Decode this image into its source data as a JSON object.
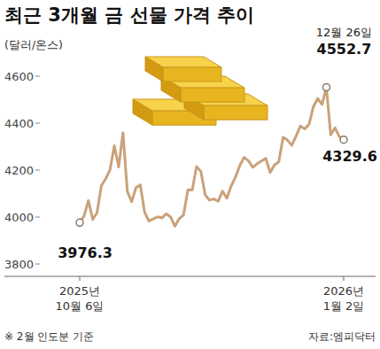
{
  "chart_data": {
    "type": "line",
    "title": "최근 3개월 금 선물 가격 추이",
    "y_label": "(달러/온스)",
    "categories": [
      "2025년 10월 6일",
      null,
      null,
      null,
      null,
      null,
      null,
      null,
      null,
      null,
      null,
      null,
      null,
      null,
      null,
      null,
      null,
      null,
      null,
      null,
      null,
      null,
      null,
      null,
      null,
      null,
      null,
      null,
      null,
      null,
      null,
      null,
      null,
      null,
      null,
      null,
      null,
      null,
      null,
      null,
      null,
      null,
      null,
      null,
      null,
      null,
      null,
      null,
      null,
      null,
      null,
      null,
      null,
      null,
      null,
      null,
      null,
      null,
      null,
      null,
      null,
      "2026년 1월 2일"
    ],
    "values": [
      3976.3,
      4004,
      4070,
      3990,
      4018,
      4133,
      4163,
      4201,
      4304,
      4213,
      4359,
      4109,
      4065,
      4125,
      4137,
      4020,
      3983,
      3992,
      4001,
      3996,
      4014,
      4000,
      3961,
      3993,
      4009,
      4116,
      4115,
      4215,
      4194,
      4094,
      4072,
      4077,
      4067,
      4110,
      4080,
      4132,
      4170,
      4220,
      4254,
      4239,
      4212,
      4227,
      4239,
      4250,
      4190,
      4222,
      4235,
      4340,
      4328,
      4305,
      4345,
      4388,
      4375,
      4395,
      4470,
      4505,
      4480,
      4552.7,
      4350,
      4380,
      4342,
      4329.6
    ],
    "color": "#c9a27a",
    "ylim": [
      3800,
      4600
    ],
    "yticks": [
      3800,
      4000,
      4200,
      4400,
      4600
    ],
    "grid": false,
    "annotations": [
      "12월 26일"
    ],
    "note": "※ 2월 인도분 기준",
    "source": "자료:엠피닥터"
  }
}
